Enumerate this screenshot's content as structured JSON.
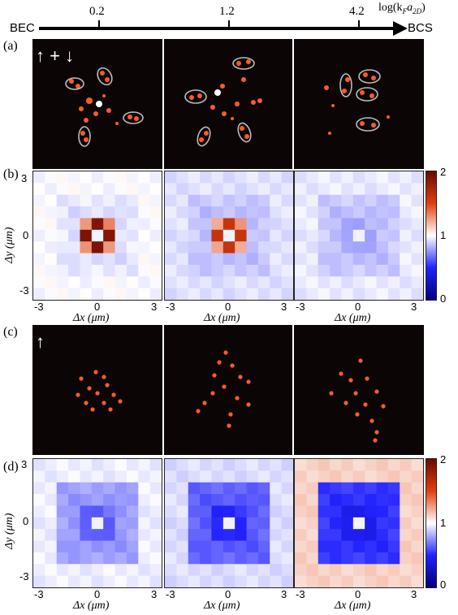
{
  "header": {
    "left_label": "BEC",
    "right_label": "BCS",
    "ticks": [
      "0.2",
      "1.2",
      "4.2"
    ],
    "axis_title": "log(k",
    "axis_title_sub1": "F",
    "axis_title_mid": "a",
    "axis_title_sub2": "2D",
    "axis_title_end": ")"
  },
  "panel_labels": {
    "a": "(a)",
    "b": "(b)",
    "c": "(c)",
    "d": "(d)"
  },
  "spin_labels": {
    "a": "↑ + ↓",
    "c": "↑"
  },
  "axes": {
    "y_title": "Δy (μm)",
    "x_title": "Δx (μm)",
    "ticks": [
      "-3",
      "0",
      "3"
    ]
  },
  "colorbar": {
    "ticks": [
      "2",
      "1",
      "0"
    ]
  },
  "chart_data": [
    {
      "type": "heatmap",
      "panel": "(b)",
      "xlabel": "Δx (μm)",
      "ylabel": "Δy (μm)",
      "xlim": [
        -3,
        3
      ],
      "ylim": [
        -3,
        3
      ],
      "colorbar_range": [
        0,
        2
      ],
      "maps": [
        {
          "center": 1,
          "ring1": 1.9,
          "diag1": 1.3,
          "ring2": 0.92,
          "outer": 0.99
        },
        {
          "center": 1,
          "ring1": 1.6,
          "diag1": 1.25,
          "ring2": 0.85,
          "outer": 0.93
        },
        {
          "center": 1,
          "ring1": 0.78,
          "diag1": 0.82,
          "ring2": 0.85,
          "outer": 0.95
        }
      ]
    },
    {
      "type": "heatmap",
      "panel": "(d)",
      "xlabel": "Δx (μm)",
      "ylabel": "Δy (μm)",
      "xlim": [
        -3,
        3
      ],
      "ylim": [
        -3,
        3
      ],
      "colorbar_range": [
        0,
        2
      ],
      "maps": [
        {
          "center": 1,
          "ring1": 0.62,
          "diag1": 0.66,
          "ring2": 0.76,
          "outer": 0.96
        },
        {
          "center": 1,
          "ring1": 0.5,
          "diag1": 0.52,
          "ring2": 0.62,
          "outer": 0.92
        },
        {
          "center": 1,
          "ring1": 0.42,
          "diag1": 0.45,
          "ring2": 0.52,
          "outer": 1.12
        }
      ]
    }
  ]
}
